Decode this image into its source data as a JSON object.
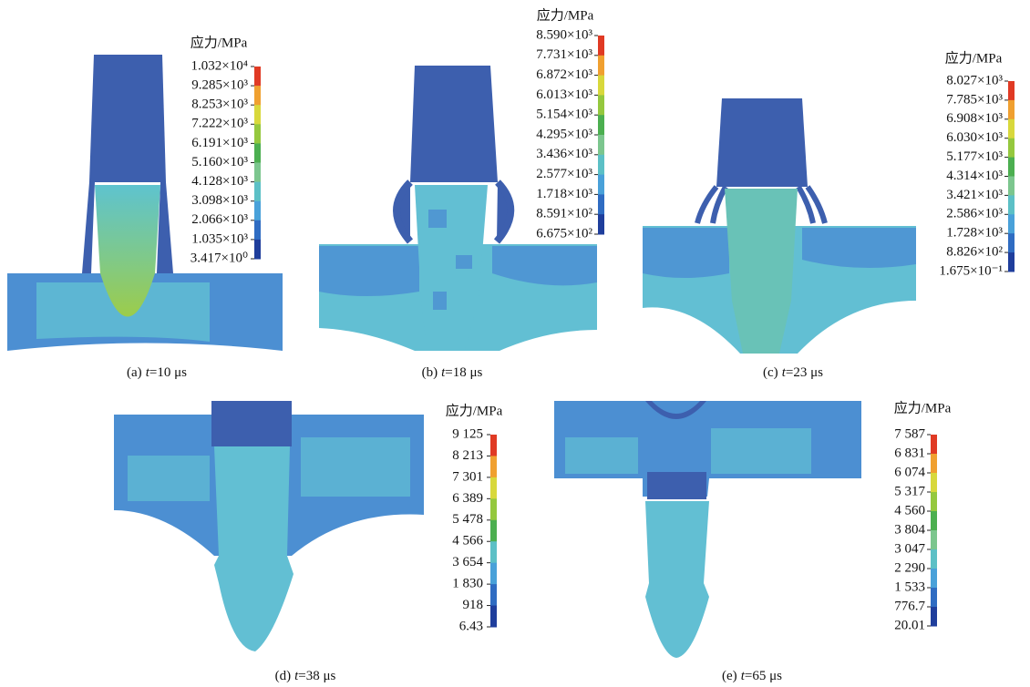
{
  "panels": [
    {
      "legend_title": "应力/MPa",
      "ticks": [
        "1.032×10⁴",
        "9.285×10³",
        "8.253×10³",
        "7.222×10³",
        "6.191×10³",
        "5.160×10³",
        "4.128×10³",
        "3.098×10³",
        "2.066×10³",
        "1.035×10³",
        "3.417×10⁰"
      ],
      "caption": {
        "label": "(a)",
        "var": "t",
        "value": "=10 μs"
      }
    },
    {
      "legend_title": "应力/MPa",
      "ticks": [
        "8.590×10³",
        "7.731×10³",
        "6.872×10³",
        "6.013×10³",
        "5.154×10³",
        "4.295×10³",
        "3.436×10³",
        "2.577×10³",
        "1.718×10³",
        "8.591×10²",
        "6.675×10²"
      ],
      "caption": {
        "label": "(b)",
        "var": "t",
        "value": "=18 μs"
      }
    },
    {
      "legend_title": "应力/MPa",
      "ticks": [
        "8.027×10³",
        "7.785×10³",
        "6.908×10³",
        "6.030×10³",
        "5.177×10³",
        "4.314×10³",
        "3.421×10³",
        "2.586×10³",
        "1.728×10³",
        "8.826×10²",
        "1.675×10⁻¹"
      ],
      "caption": {
        "label": "(c)",
        "var": "t",
        "value": "=23 μs"
      }
    },
    {
      "legend_title": "应力/MPa",
      "ticks": [
        "9 125",
        "8 213",
        "7 301",
        "6 389",
        "5 478",
        "4 566",
        "3 654",
        "1 830",
        "918",
        "6.43"
      ],
      "caption": {
        "label": "(d)",
        "var": "t",
        "value": "=38 μs"
      }
    },
    {
      "legend_title": "应力/MPa",
      "ticks": [
        "7 587",
        "6 831",
        "6 074",
        "5 317",
        "4 560",
        "3 804",
        "3 047",
        "2 290",
        "1 533",
        "776.7",
        "20.01"
      ],
      "caption": {
        "label": "(e)",
        "var": "t",
        "value": "=65 μs"
      }
    }
  ]
}
